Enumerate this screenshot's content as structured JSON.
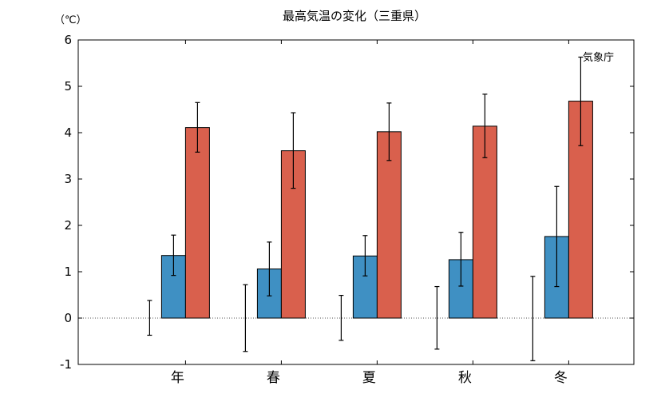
{
  "chart_data": {
    "type": "bar",
    "title": "最高気温の変化（三重県）",
    "unit_label": "（℃）",
    "credit": "気象庁",
    "categories": [
      "年",
      "春",
      "夏",
      "秋",
      "冬"
    ],
    "ylim": [
      -1,
      6
    ],
    "yticks": [
      "-1",
      "0",
      "1",
      "2",
      "3",
      "4",
      "5",
      "6"
    ],
    "zero_line": "dotted",
    "series": [
      {
        "color": "#ffffff",
        "values": [
          0,
          0,
          0,
          0,
          0
        ],
        "err_low": [
          -0.37,
          -0.72,
          -0.48,
          -0.67,
          -0.92
        ],
        "err_high": [
          0.38,
          0.72,
          0.49,
          0.68,
          0.9
        ]
      },
      {
        "color": "#3f90c3",
        "values": [
          1.35,
          1.06,
          1.34,
          1.26,
          1.76
        ],
        "err_low": [
          0.92,
          0.48,
          0.91,
          0.69,
          0.68
        ],
        "err_high": [
          1.79,
          1.64,
          1.78,
          1.85,
          2.84
        ]
      },
      {
        "color": "#d9604d",
        "values": [
          4.11,
          3.61,
          4.02,
          4.14,
          4.68
        ],
        "err_low": [
          3.58,
          2.8,
          3.4,
          3.46,
          3.72
        ],
        "err_high": [
          4.65,
          4.43,
          4.64,
          4.83,
          5.63
        ]
      }
    ]
  }
}
